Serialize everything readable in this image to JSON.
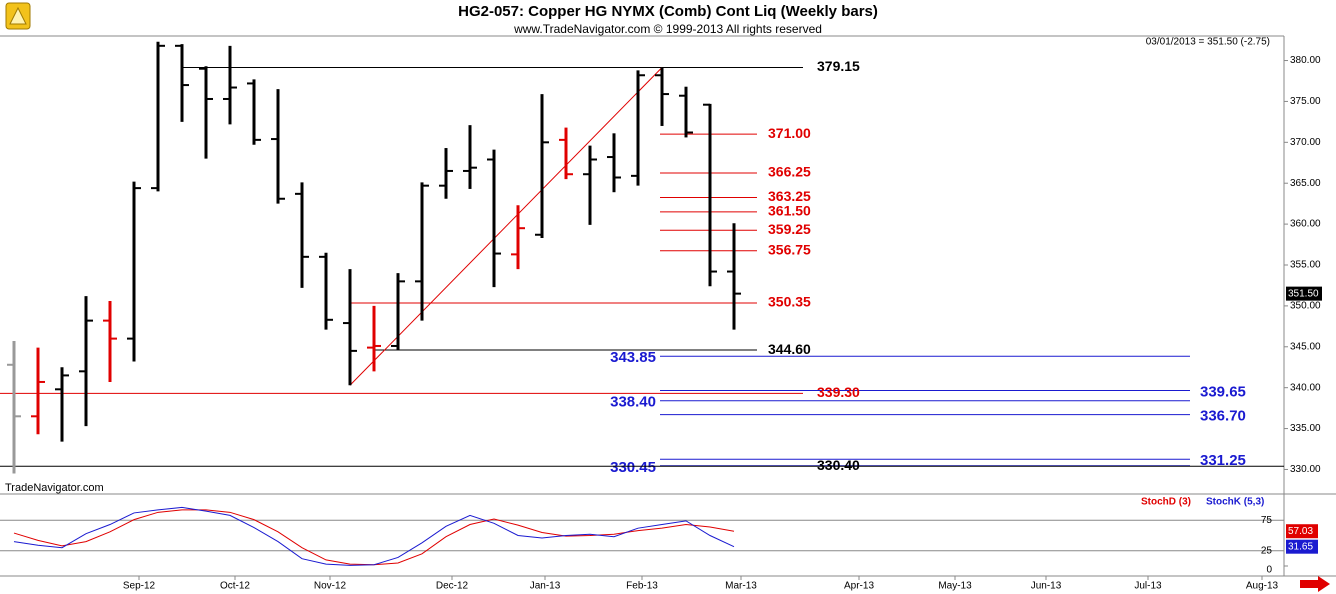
{
  "chart_data": {
    "type": "ohlc",
    "title": "HG2-057:  Copper HG NYMX (Comb) Cont Liq  (Weekly bars)",
    "subtitle": "www.TradeNavigator.com © 1999-2013 All rights reserved",
    "header_quote": "03/01/2013 = 351.50 (-2.75)",
    "watermark": "TradeNavigator.com",
    "x_labels": [
      "Sep-12",
      "Oct-12",
      "Nov-12",
      "Dec-12",
      "Jan-13",
      "Feb-13",
      "Mar-13",
      "Apr-13",
      "May-13",
      "Jun-13",
      "Jul-13",
      "Aug-13"
    ],
    "ohlc": {
      "open": [
        342.8,
        336.5,
        339.8,
        342.0,
        348.2,
        346.0,
        364.4,
        381.8,
        379.0,
        375.3,
        377.2,
        370.4,
        363.7,
        356.0,
        347.9,
        344.9,
        345.1,
        353.0,
        364.7,
        366.5,
        367.9,
        356.3,
        358.7,
        370.3,
        366.1,
        368.2,
        365.9,
        378.2,
        375.7,
        374.6,
        354.2
      ],
      "high": [
        345.7,
        344.9,
        342.5,
        351.2,
        350.6,
        365.2,
        382.3,
        382.0,
        379.3,
        381.8,
        377.7,
        376.5,
        365.1,
        356.5,
        354.5,
        350.0,
        354.0,
        365.1,
        369.3,
        372.1,
        369.1,
        362.3,
        375.9,
        371.8,
        369.6,
        371.1,
        378.8,
        379.15,
        376.8,
        374.7,
        360.1
      ],
      "low": [
        329.5,
        334.3,
        333.4,
        335.3,
        340.7,
        343.2,
        364.0,
        372.5,
        368.0,
        372.2,
        369.7,
        362.5,
        352.2,
        347.1,
        340.3,
        342.0,
        344.6,
        348.2,
        363.1,
        364.3,
        352.3,
        354.5,
        358.3,
        365.5,
        359.9,
        363.9,
        364.7,
        372.0,
        370.6,
        352.4,
        347.1
      ],
      "close": [
        336.5,
        340.7,
        341.5,
        348.2,
        346.0,
        364.4,
        381.8,
        377.0,
        375.3,
        376.7,
        370.3,
        363.1,
        356.0,
        348.3,
        344.5,
        345.1,
        353.0,
        364.7,
        366.5,
        366.9,
        356.4,
        359.5,
        370.0,
        366.1,
        367.9,
        365.7,
        378.2,
        375.9,
        371.2,
        354.2,
        351.5
      ],
      "colors": [
        "#999999",
        "#e00000",
        "#000000",
        "#000000",
        "#e00000",
        "#000000",
        "#000000",
        "#000000",
        "#000000",
        "#000000",
        "#000000",
        "#000000",
        "#000000",
        "#000000",
        "#000000",
        "#e00000",
        "#000000",
        "#000000",
        "#000000",
        "#000000",
        "#000000",
        "#e00000",
        "#000000",
        "#e00000",
        "#000000",
        "#000000",
        "#000000",
        "#000000",
        "#000000",
        "#000000",
        "#000000"
      ]
    },
    "price_box": {
      "value": 351.5,
      "label": "351.50"
    },
    "ylim": [
      327,
      383
    ],
    "yticks": [
      {
        "value": 330,
        "label": "330.00"
      },
      {
        "value": 335,
        "label": "335.00"
      },
      {
        "value": 340,
        "label": "340.00"
      },
      {
        "value": 345,
        "label": "345.00"
      },
      {
        "value": 350,
        "label": "350.00"
      },
      {
        "value": 355,
        "label": "355.00"
      },
      {
        "value": 360,
        "label": "360.00"
      },
      {
        "value": 365,
        "label": "365.00"
      },
      {
        "value": 370,
        "label": "370.00"
      },
      {
        "value": 375,
        "label": "375.00"
      },
      {
        "value": 380,
        "label": "380.00"
      }
    ],
    "levels": [
      {
        "value": 379.15,
        "label": "379.15",
        "color": "#000000"
      },
      {
        "value": 371.0,
        "label": "371.00",
        "color": "#e00000"
      },
      {
        "value": 366.25,
        "label": "366.25",
        "color": "#e00000"
      },
      {
        "value": 363.25,
        "label": "363.25",
        "color": "#e00000"
      },
      {
        "value": 361.5,
        "label": "361.50",
        "color": "#e00000"
      },
      {
        "value": 359.25,
        "label": "359.25",
        "color": "#e00000"
      },
      {
        "value": 356.75,
        "label": "356.75",
        "color": "#e00000"
      },
      {
        "value": 350.35,
        "label": "350.35",
        "color": "#e00000"
      },
      {
        "value": 344.6,
        "label": "344.60",
        "color": "#000000"
      },
      {
        "value": 343.85,
        "label": "343.85",
        "color": "#1a1ad0"
      },
      {
        "value": 339.65,
        "label": "339.65",
        "color": "#1a1ad0"
      },
      {
        "value": 339.3,
        "label": "339.30",
        "color": "#e00000"
      },
      {
        "value": 338.4,
        "label": "338.40",
        "color": "#1a1ad0"
      },
      {
        "value": 336.7,
        "label": "336.70",
        "color": "#1a1ad0"
      },
      {
        "value": 331.25,
        "label": "331.25",
        "color": "#1a1ad0"
      },
      {
        "value": 330.45,
        "label": "330.45",
        "color": "#1a1ad0"
      },
      {
        "value": 330.4,
        "label": "330.40",
        "color": "#000000"
      }
    ],
    "trendline": {
      "from": 340.3,
      "to": 379.15,
      "color": "#e00000"
    },
    "stochastic": {
      "ylim": [
        0,
        100
      ],
      "yticks": [
        0,
        25,
        75
      ],
      "series": [
        {
          "name": "StochD (3)",
          "color": "#e00000",
          "values": [
            54,
            42,
            33,
            40,
            56,
            76,
            88,
            92,
            92,
            88,
            76,
            56,
            30,
            10,
            3,
            2,
            5,
            20,
            48,
            68,
            77,
            67,
            55,
            49,
            50,
            52,
            58,
            62,
            68,
            64,
            57.03
          ]
        },
        {
          "name": "StochK (5,3)",
          "color": "#1a1ad0",
          "values": [
            40,
            34,
            30,
            53,
            68,
            87,
            92,
            96,
            90,
            83,
            63,
            40,
            12,
            3,
            1,
            2,
            14,
            38,
            65,
            83,
            70,
            50,
            46,
            50,
            52,
            48,
            62,
            68,
            74,
            50,
            31.65
          ]
        }
      ]
    }
  }
}
